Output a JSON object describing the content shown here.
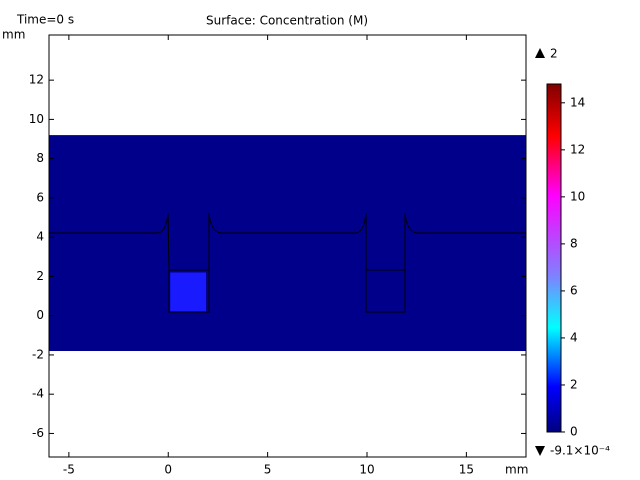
{
  "chart_data": {
    "type": "surface",
    "title": "Surface: Concentration (M)",
    "time_label": "Time=0 s",
    "x_unit": "mm",
    "y_unit": "mm",
    "xlim": [
      -6,
      18
    ],
    "ylim": [
      -7.2,
      14.3
    ],
    "xticks": [
      -5,
      0,
      5,
      10,
      15
    ],
    "yticks": [
      -6,
      -4,
      -2,
      0,
      2,
      4,
      6,
      8,
      10,
      12
    ],
    "regions": [
      {
        "x": [
          -6,
          18
        ],
        "y": [
          -1.8,
          9.2
        ],
        "value": 0,
        "color": "#00008b"
      },
      {
        "x": [
          0.1,
          1.9
        ],
        "y": [
          0.2,
          2.2
        ],
        "value": 2,
        "color": "#1a1aff"
      }
    ],
    "colorbar": {
      "clim": [
        -0.00091,
        14.8
      ],
      "ticks": [
        0,
        2,
        4,
        6,
        8,
        10,
        12,
        14
      ]
    },
    "max": 2,
    "min": {
      "value": -0.00091,
      "label": "-9.1×10⁻⁴"
    }
  }
}
